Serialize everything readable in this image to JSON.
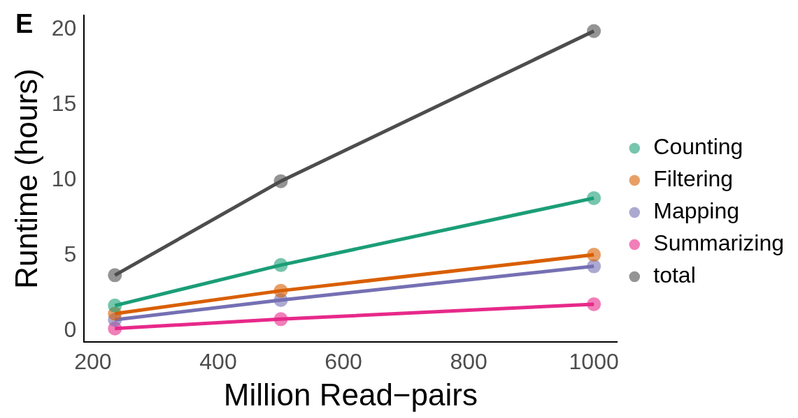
{
  "chart_data": {
    "type": "line",
    "xlabel": "Million Read−pairs",
    "ylabel": "Runtime (hours)",
    "annotations": [
      "E"
    ],
    "xlim": [
      186,
      1037
    ],
    "xticks": [
      200,
      400,
      600,
      800,
      1000
    ],
    "ylim": [
      -0.7,
      20.9
    ],
    "yticks": [
      0,
      5,
      10,
      15,
      20
    ],
    "grid": false,
    "legend": "right",
    "marker": "circle",
    "line_style": "solid",
    "series": [
      {
        "name": "Counting",
        "color": "#1b9e77",
        "x": [
          235,
          500,
          1000
        ],
        "values": [
          1.7,
          4.38,
          8.81
        ]
      },
      {
        "name": "Filtering",
        "color": "#d95f02",
        "x": [
          235,
          500,
          1000
        ],
        "values": [
          1.16,
          2.68,
          5.06
        ]
      },
      {
        "name": "Mapping",
        "color": "#7570b3",
        "x": [
          235,
          500,
          1000
        ],
        "values": [
          0.76,
          2.06,
          4.3
        ]
      },
      {
        "name": "Summarizing",
        "color": "#e7298a",
        "x": [
          235,
          500,
          1000
        ],
        "values": [
          0.18,
          0.8,
          1.79
        ]
      },
      {
        "name": "total",
        "color": "#4d4d4d",
        "x": [
          235,
          500,
          1000
        ],
        "values": [
          3.71,
          9.93,
          19.87
        ]
      }
    ]
  }
}
